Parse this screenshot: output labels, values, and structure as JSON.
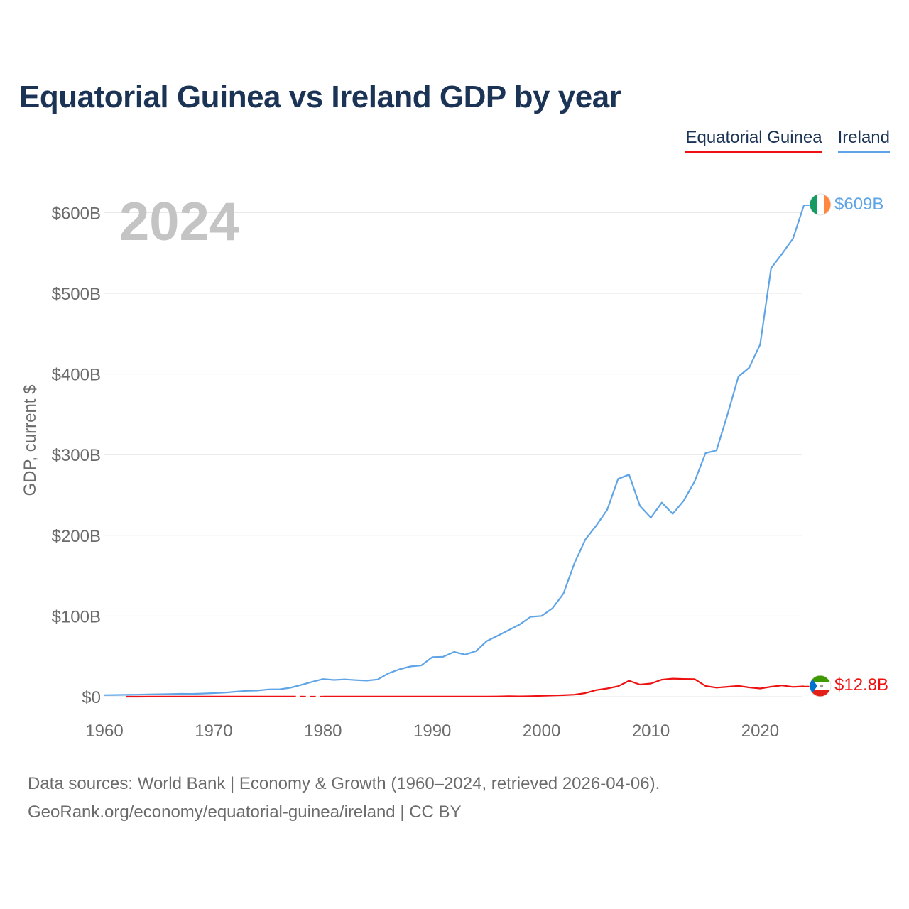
{
  "header": {
    "title": "Equatorial Guinea vs Ireland GDP by year"
  },
  "legend": {
    "items": [
      {
        "label": "Equatorial Guinea",
        "color": "#ee1111"
      },
      {
        "label": "Ireland",
        "color": "#5fa4e6"
      }
    ]
  },
  "chart_data": {
    "type": "line",
    "title": "Equatorial Guinea vs Ireland GDP by year",
    "ylabel": "GDP, current $",
    "xlabel": "",
    "year_label": "2024",
    "xlim": [
      1960,
      2024
    ],
    "ylim": [
      0,
      620
    ],
    "unit": "billion USD",
    "x_ticks": [
      1960,
      1970,
      1980,
      1990,
      2000,
      2010,
      2020
    ],
    "y_ticks": [
      {
        "value": 0,
        "label": "$0"
      },
      {
        "value": 100,
        "label": "$100B"
      },
      {
        "value": 200,
        "label": "$200B"
      },
      {
        "value": 300,
        "label": "$300B"
      },
      {
        "value": 400,
        "label": "$400B"
      },
      {
        "value": 500,
        "label": "$500B"
      },
      {
        "value": 600,
        "label": "$600B"
      }
    ],
    "series": [
      {
        "name": "Ireland",
        "color": "#5fa4e6",
        "end_label": "$609B",
        "flag": "ireland-flag",
        "x": [
          1960,
          1961,
          1962,
          1963,
          1964,
          1965,
          1966,
          1967,
          1968,
          1969,
          1970,
          1971,
          1972,
          1973,
          1974,
          1975,
          1976,
          1977,
          1978,
          1979,
          1980,
          1981,
          1982,
          1983,
          1984,
          1985,
          1986,
          1987,
          1988,
          1989,
          1990,
          1991,
          1992,
          1993,
          1994,
          1995,
          1996,
          1997,
          1998,
          1999,
          2000,
          2001,
          2002,
          2003,
          2004,
          2005,
          2006,
          2007,
          2008,
          2009,
          2010,
          2011,
          2012,
          2013,
          2014,
          2015,
          2016,
          2017,
          2018,
          2019,
          2020,
          2021,
          2022,
          2023,
          2024
        ],
        "values": [
          1.9,
          2.1,
          2.3,
          2.5,
          2.8,
          3.0,
          3.2,
          3.5,
          3.4,
          3.9,
          4.4,
          5.0,
          6.2,
          7.2,
          7.6,
          9.0,
          9.1,
          11.0,
          14.5,
          18.3,
          21.8,
          20.7,
          21.4,
          20.5,
          19.9,
          21.3,
          29.0,
          33.9,
          37.4,
          38.7,
          48.9,
          49.5,
          55.5,
          52.1,
          56.5,
          69.0,
          75.7,
          82.6,
          89.5,
          99.0,
          100.1,
          109.6,
          127.7,
          165.2,
          194.7,
          212.1,
          231.6,
          270.0,
          275.3,
          236.4,
          221.9,
          240.6,
          226.6,
          242.9,
          266.7,
          301.9,
          305.3,
          349.4,
          396.6,
          407.9,
          436.6,
          531.1,
          548.9,
          567.8,
          609.0
        ]
      },
      {
        "name": "Equatorial Guinea",
        "color": "#ee1111",
        "end_label": "$12.8B",
        "flag": "equatorial-guinea-flag",
        "x": [
          1962,
          1963,
          1964,
          1965,
          1966,
          1967,
          1968,
          1969,
          1970,
          1971,
          1972,
          1973,
          1974,
          1975,
          1976,
          1977,
          1978,
          1979,
          1980,
          1981,
          1982,
          1983,
          1984,
          1985,
          1986,
          1987,
          1988,
          1989,
          1990,
          1991,
          1992,
          1993,
          1994,
          1995,
          1996,
          1997,
          1998,
          1999,
          2000,
          2001,
          2002,
          2003,
          2004,
          2005,
          2006,
          2007,
          2008,
          2009,
          2010,
          2011,
          2012,
          2013,
          2014,
          2015,
          2016,
          2017,
          2018,
          2019,
          2020,
          2021,
          2022,
          2023,
          2024
        ],
        "values": [
          0.04,
          0.04,
          0.05,
          0.05,
          0.05,
          0.06,
          0.06,
          0.06,
          0.07,
          0.07,
          0.07,
          0.08,
          0.08,
          0.08,
          0.09,
          0.09,
          null,
          null,
          0.06,
          0.05,
          0.06,
          0.07,
          0.08,
          0.08,
          0.09,
          0.1,
          0.11,
          0.1,
          0.13,
          0.13,
          0.16,
          0.16,
          0.12,
          0.14,
          0.23,
          0.5,
          0.37,
          0.6,
          1.05,
          1.46,
          1.81,
          2.48,
          4.41,
          8.22,
          10.1,
          12.9,
          19.7,
          15.0,
          16.3,
          21.0,
          22.4,
          21.9,
          21.7,
          13.2,
          11.2,
          12.2,
          13.3,
          11.4,
          10.1,
          12.3,
          13.9,
          12.1,
          12.8
        ]
      }
    ]
  },
  "footer": {
    "sources": "Data sources: World Bank | Economy & Growth (1960–2024, retrieved 2026-04-06).",
    "link": "GeoRank.org/economy/equatorial-guinea/ireland | CC BY"
  }
}
